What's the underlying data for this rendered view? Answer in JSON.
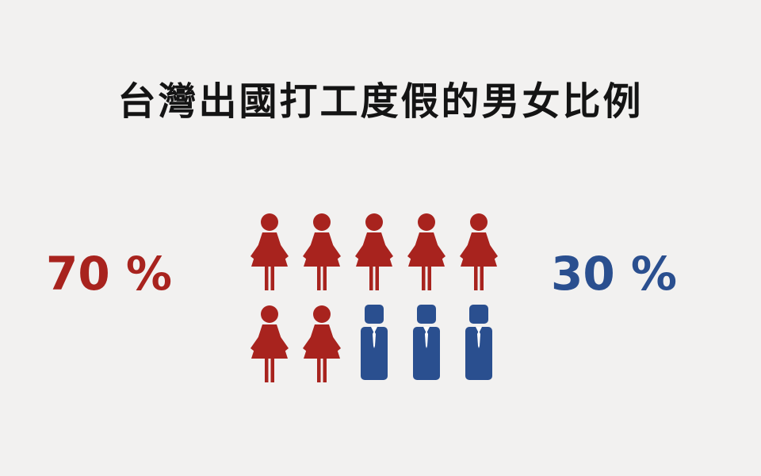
{
  "title": "台灣出國打工度假的男女比例",
  "colors": {
    "female": "#a8231e",
    "male": "#2a4f8f",
    "background": "#f2f1f0",
    "title": "#141414"
  },
  "chart_data": {
    "type": "pictograph",
    "title": "台灣出國打工度假的男女比例",
    "total_icons": 10,
    "series": [
      {
        "category": "female",
        "icon": "female-figure-icon",
        "value": 70,
        "label": "70 %",
        "icons": 7,
        "color": "#a8231e"
      },
      {
        "category": "male",
        "icon": "male-figure-icon",
        "value": 30,
        "label": "30 %",
        "icons": 3,
        "color": "#2a4f8f"
      }
    ],
    "icons_per_row": 5
  }
}
